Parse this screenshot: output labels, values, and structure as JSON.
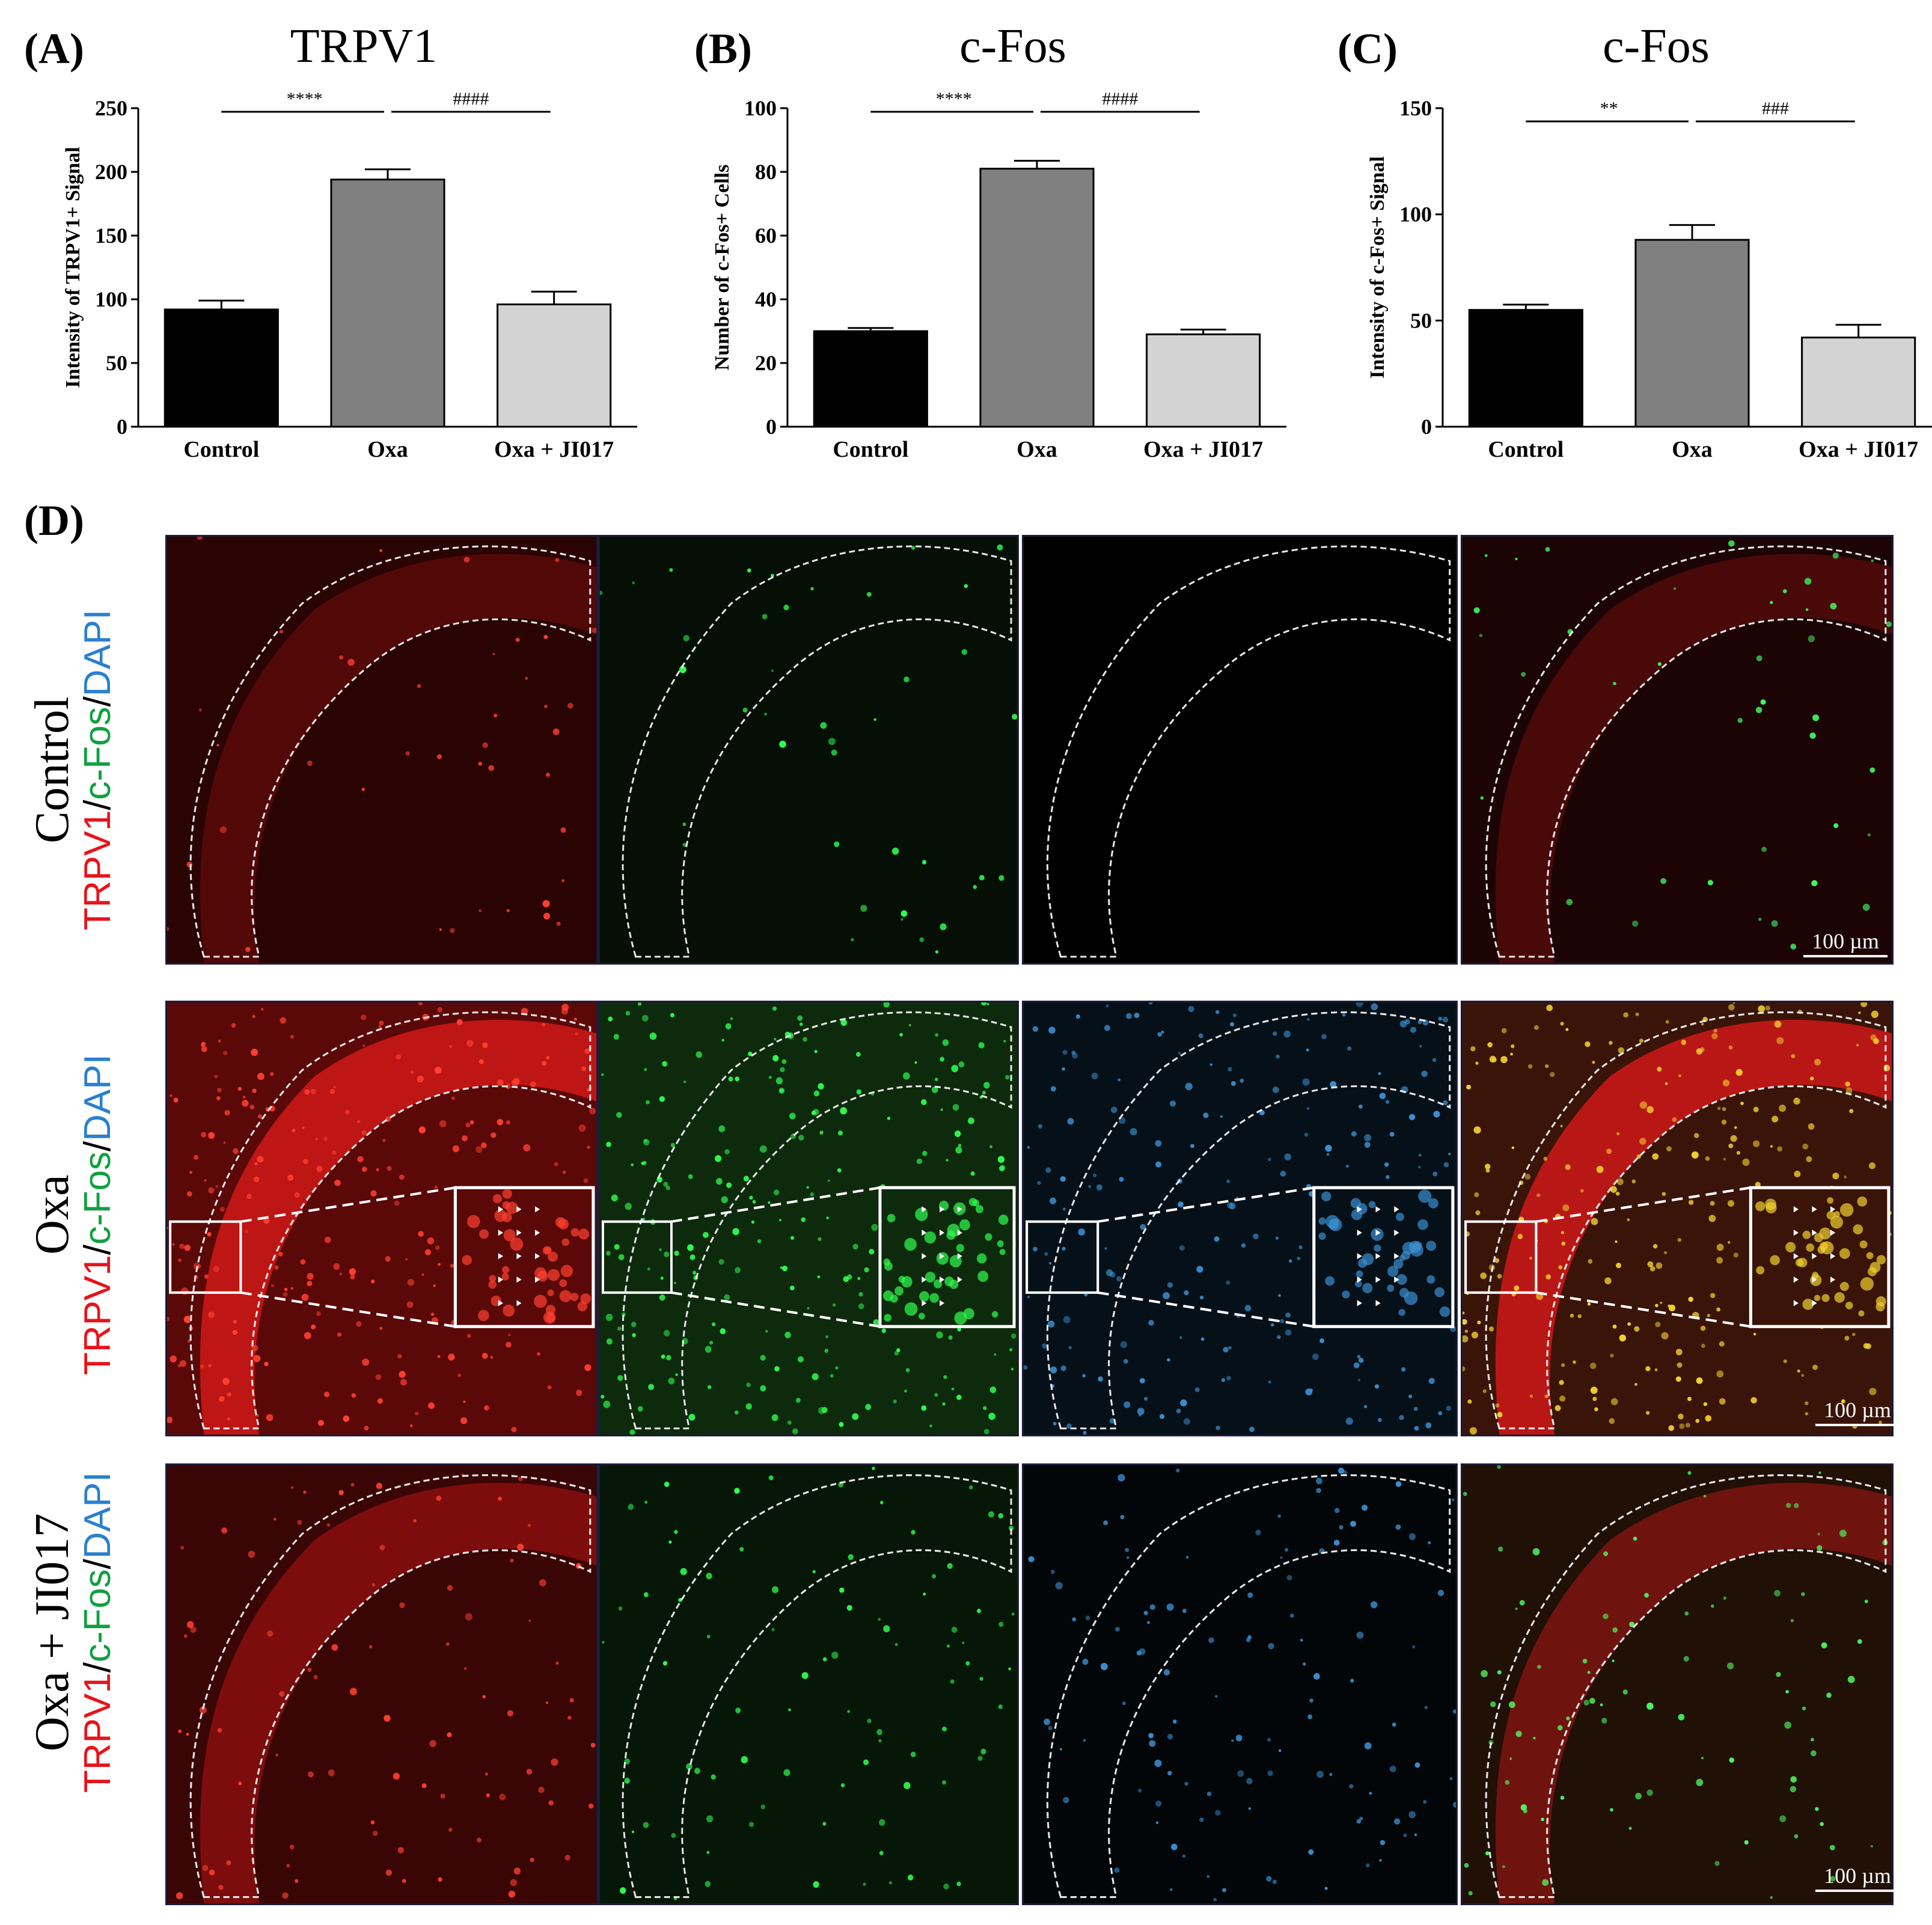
{
  "panels": {
    "a": "(A)",
    "b": "(B)",
    "c": "(C)",
    "d": "(D)"
  },
  "chart_data": [
    {
      "type": "bar",
      "title": "TRPV1",
      "ylabel": "Intensity of TRPV1+ Signal",
      "xlabel": "",
      "categories": [
        "Control",
        "Oxa",
        "Oxa + JI017"
      ],
      "values": [
        92,
        194,
        96
      ],
      "errors": [
        7,
        8,
        10
      ],
      "ylim": [
        0,
        250
      ],
      "yticks": [
        "0",
        "50",
        "100",
        "150",
        "200",
        "250"
      ],
      "colors": [
        "#000000",
        "#808080",
        "#d3d3d3"
      ],
      "significance": [
        {
          "from": 0,
          "to": 1,
          "label": "****"
        },
        {
          "from": 1,
          "to": 2,
          "label": "####"
        }
      ]
    },
    {
      "type": "bar",
      "title": "c-Fos",
      "ylabel": "Number of c-Fos+ Cells",
      "xlabel": "",
      "categories": [
        "Control",
        "Oxa",
        "Oxa + JI017"
      ],
      "values": [
        30,
        81,
        29
      ],
      "errors": [
        1,
        2.5,
        1.5
      ],
      "ylim": [
        0,
        100
      ],
      "yticks": [
        "0",
        "20",
        "40",
        "60",
        "80",
        "100"
      ],
      "colors": [
        "#000000",
        "#808080",
        "#d3d3d3"
      ],
      "significance": [
        {
          "from": 0,
          "to": 1,
          "label": "****"
        },
        {
          "from": 1,
          "to": 2,
          "label": "####"
        }
      ]
    },
    {
      "type": "bar",
      "title": "c-Fos",
      "ylabel": "Intensity of c-Fos+ Signal",
      "xlabel": "",
      "categories": [
        "Control",
        "Oxa",
        "Oxa + JI017"
      ],
      "values": [
        55,
        88,
        42
      ],
      "errors": [
        2.5,
        7,
        6
      ],
      "ylim": [
        0,
        150
      ],
      "yticks": [
        "0",
        "50",
        "100",
        "150"
      ],
      "colors": [
        "#000000",
        "#808080",
        "#d3d3d3"
      ],
      "significance": [
        {
          "from": 0,
          "to": 1,
          "label": "**"
        },
        {
          "from": 1,
          "to": 2,
          "label": "###"
        }
      ]
    }
  ],
  "micrographs": {
    "rows": [
      {
        "condition": "Control"
      },
      {
        "condition": "Oxa"
      },
      {
        "condition": "Oxa + JI017"
      }
    ],
    "stain": {
      "trpv1": "TRPV1",
      "sep1": "/",
      "cfos": "c-Fos",
      "sep2": "/",
      "dapi": "DAPI"
    },
    "scale_bar": "100 µm",
    "channel_colors": {
      "trpv1": "#ff2020",
      "cfos": "#20d040",
      "dapi": "#3a8fd0",
      "merge": "#e0c030"
    }
  }
}
